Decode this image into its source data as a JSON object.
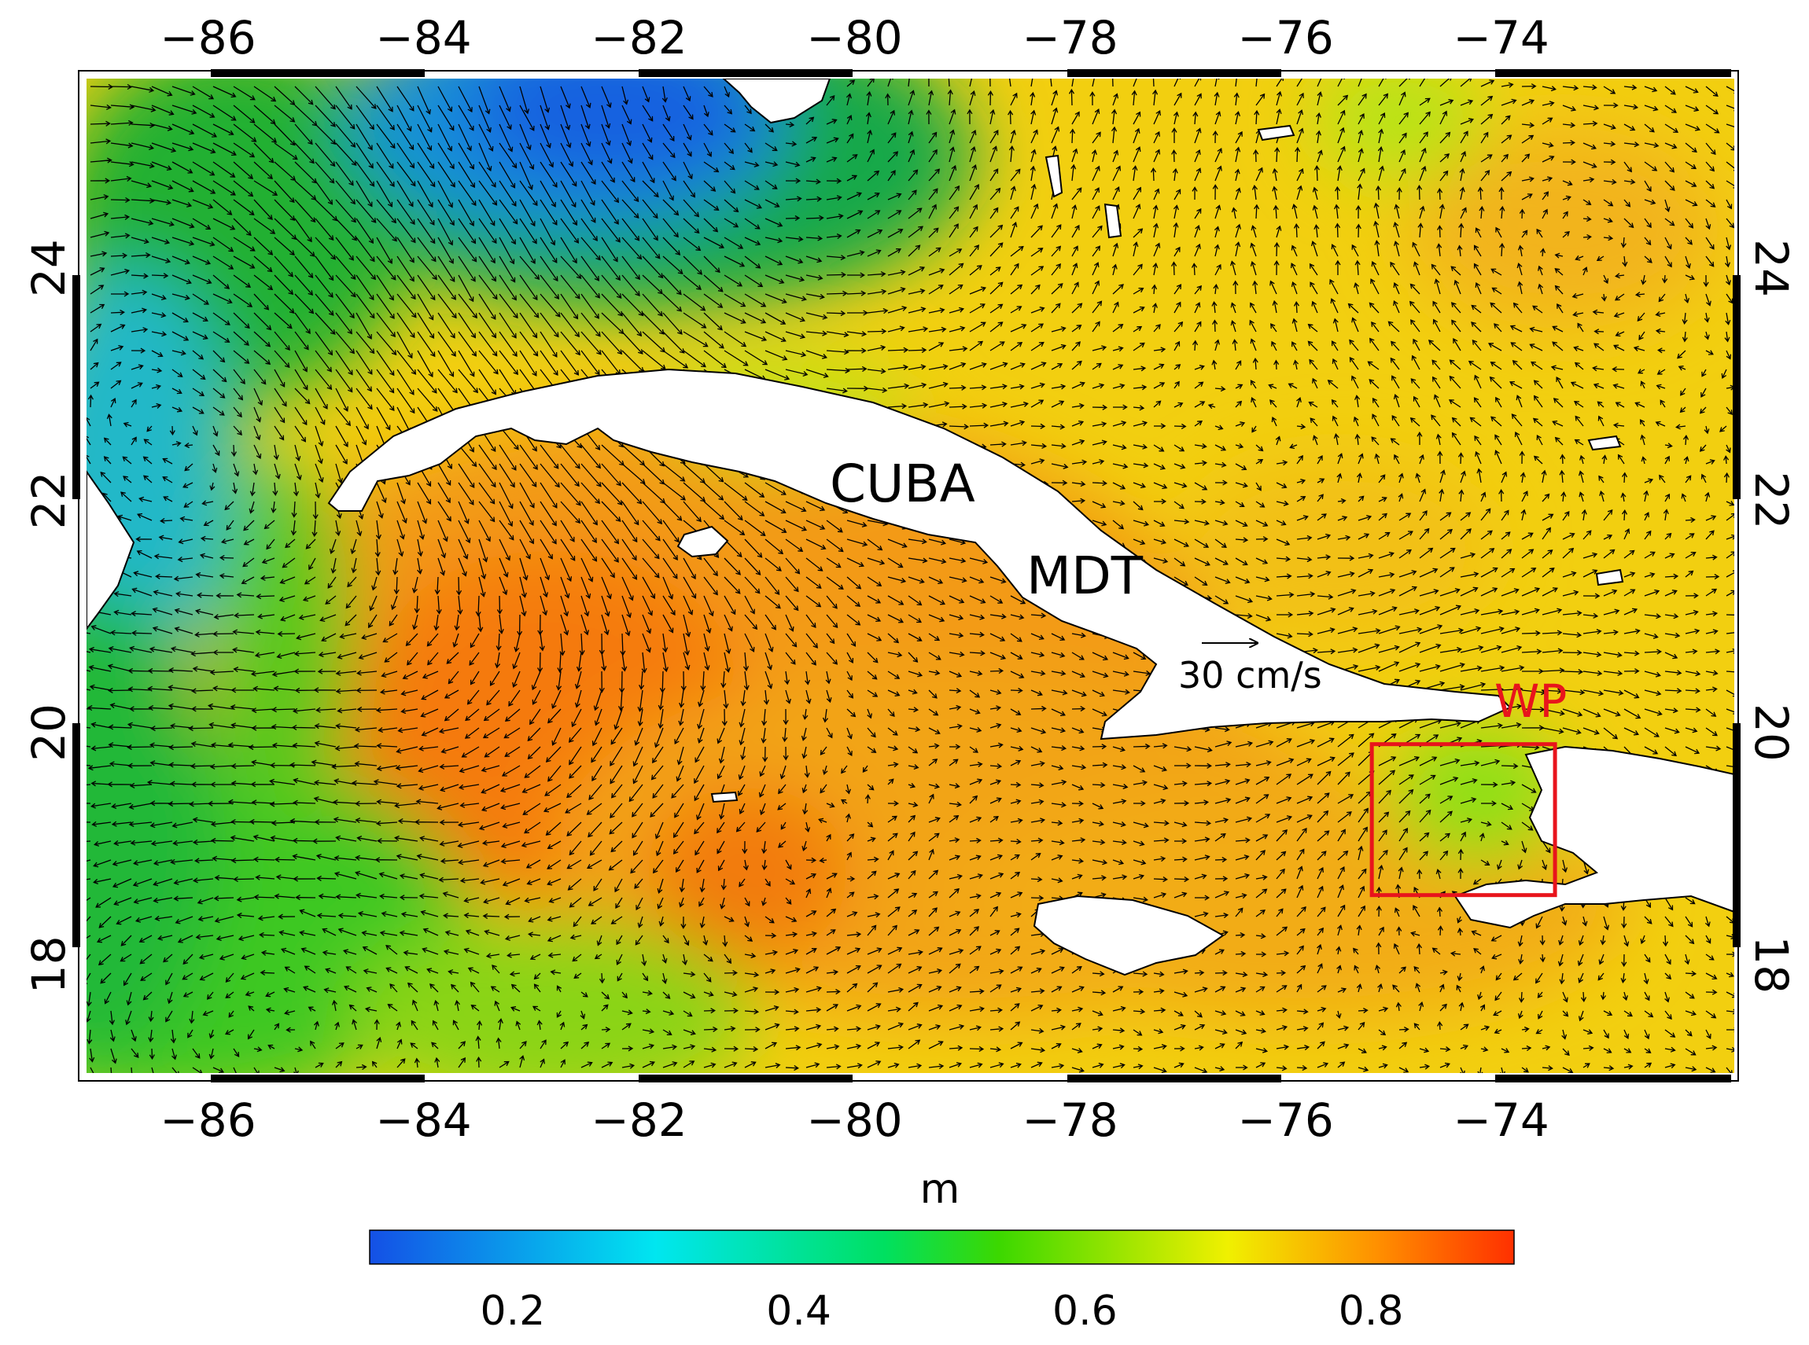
{
  "map": {
    "lon_range": [
      -87.2,
      -71.8
    ],
    "lat_range": [
      17.0,
      25.7
    ],
    "lon_ticks": [
      "−86",
      "−84",
      "−82",
      "−80",
      "−78",
      "−76",
      "−74"
    ],
    "lat_ticks": [
      "18",
      "20",
      "22",
      "24"
    ],
    "labels": {
      "cuba": "CUBA",
      "field": "MDT",
      "reference_vector": "30 cm/s",
      "box": "WP"
    },
    "box_lonlat": {
      "lon_min": -75.2,
      "lon_max": -73.5,
      "lat_min": 18.6,
      "lat_max": 19.9
    },
    "colors": {
      "box": "#e8141c",
      "land": "#ffffff",
      "vectors": "#000000"
    }
  },
  "colorbar": {
    "unit": "m",
    "range": [
      0.1,
      0.9
    ],
    "ticks": [
      "0.2",
      "0.4",
      "0.6",
      "0.8"
    ],
    "colors": [
      "#1450e6",
      "#00e6f0",
      "#00e060",
      "#3cd800",
      "#f0f000",
      "#ff9000",
      "#ff3000"
    ]
  }
}
